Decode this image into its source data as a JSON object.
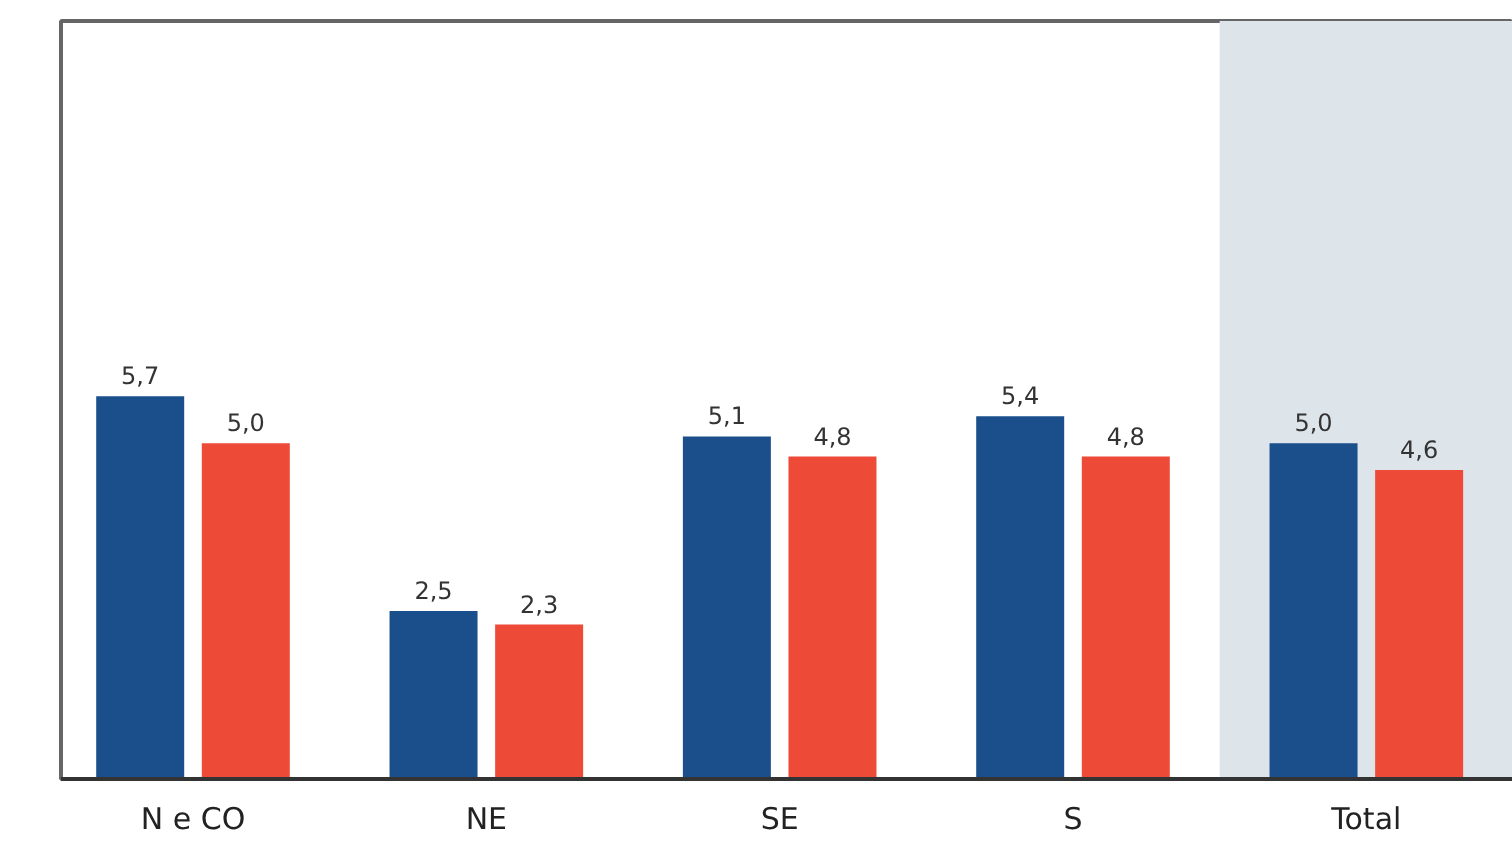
{
  "chart_data": {
    "type": "bar",
    "categories": [
      "N e CO",
      "NE",
      "SE",
      "S",
      "Total"
    ],
    "series": [
      {
        "color": "#1a4f8c",
        "values": [
          5.7,
          2.5,
          5.1,
          5.4,
          5.0
        ],
        "value_labels": [
          "5,7",
          "2,5",
          "5,1",
          "5,4",
          "5,0"
        ]
      },
      {
        "color": "#ee4a38",
        "values": [
          5.0,
          2.3,
          4.8,
          4.8,
          4.6
        ],
        "value_labels": [
          "5,0",
          "2,3",
          "4,8",
          "4,8",
          "4,6"
        ]
      }
    ],
    "bands": [
      {
        "axis": "x",
        "from": "Total",
        "to": "Total",
        "color": "#dde4ea"
      }
    ],
    "grid": false
  }
}
